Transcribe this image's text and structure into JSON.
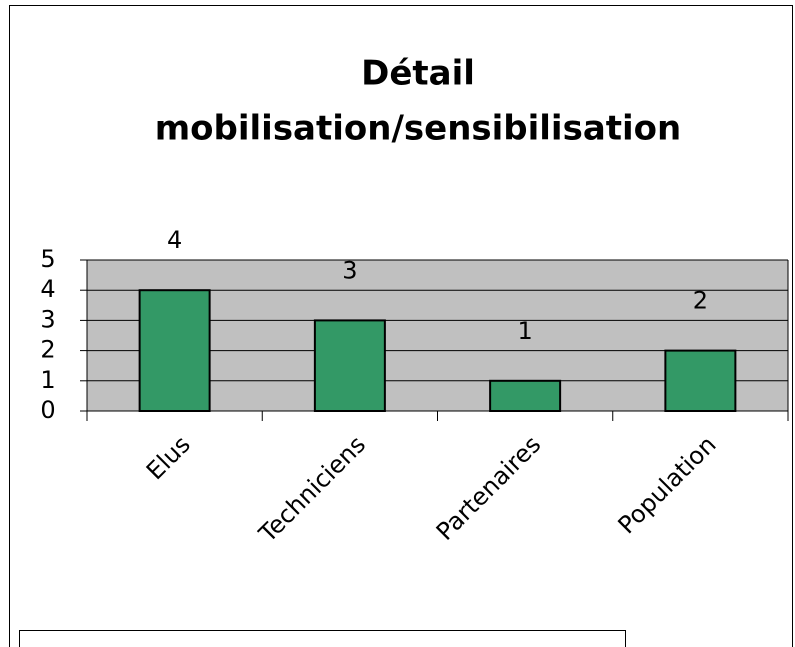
{
  "chart_data": {
    "type": "bar",
    "title": [
      "Détail",
      "mobilisation/sensibilisation"
    ],
    "categories": [
      "Elus",
      "Techniciens",
      "Partenaires",
      "Population"
    ],
    "values": [
      4,
      3,
      1,
      2
    ],
    "color": "#339966",
    "ylim": [
      0,
      5
    ],
    "yticks": [
      0,
      1,
      2,
      3,
      4,
      5
    ],
    "grid": true
  }
}
